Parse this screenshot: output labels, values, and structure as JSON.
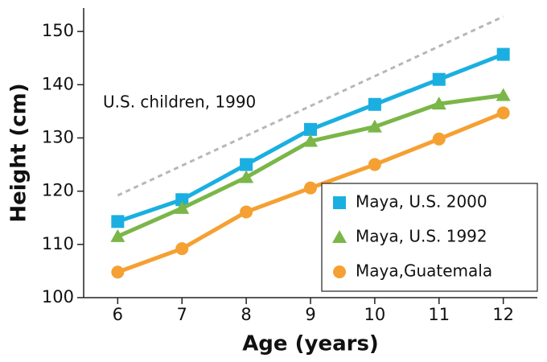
{
  "chart_data": {
    "type": "line",
    "xlabel": "Age (years)",
    "ylabel": "Height (cm)",
    "x": [
      6,
      7,
      8,
      9,
      10,
      11,
      12
    ],
    "xlim": [
      5.47,
      12.53
    ],
    "xticks": [
      6,
      7,
      8,
      9,
      10,
      11,
      12
    ],
    "ylim": [
      100,
      154.4
    ],
    "yticks": [
      100,
      110,
      120,
      130,
      140,
      150
    ],
    "legend": "lower right",
    "series": [
      {
        "name": "Maya, U.S. 2000",
        "color": "#1aafe0",
        "marker": "square",
        "values": [
          114.3,
          118.4,
          125.0,
          131.6,
          136.3,
          141.0,
          145.7
        ]
      },
      {
        "name": "Maya, U.S. 1992",
        "color": "#7ab648",
        "marker": "triangle",
        "values": [
          111.5,
          116.8,
          122.6,
          129.4,
          132.1,
          136.4,
          138.0
        ]
      },
      {
        "name": "Maya,Guatemala",
        "color": "#f5a032",
        "marker": "circle",
        "values": [
          104.8,
          109.2,
          116.1,
          120.6,
          125.0,
          129.8,
          134.7
        ]
      }
    ],
    "reference_line": {
      "label": "U.S. children, 1990",
      "color": "#b5b8ba",
      "dashed": true,
      "values": [
        119.2,
        124.8,
        130.4,
        136.0,
        141.6,
        147.2,
        152.8
      ]
    }
  }
}
